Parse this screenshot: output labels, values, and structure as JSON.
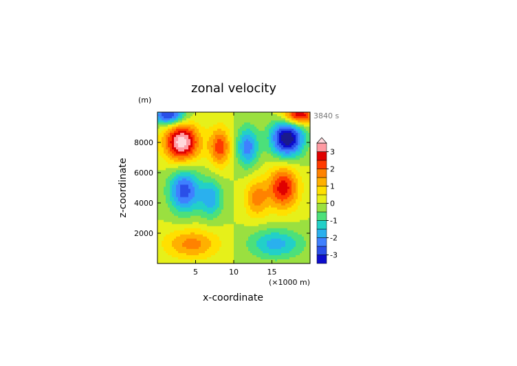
{
  "chart_data": {
    "type": "heatmap",
    "title": "zonal velocity",
    "time_label": "3840 s",
    "xlabel": "x-coordinate",
    "ylabel": "z-coordinate",
    "x_unit": "(×1000 m)",
    "y_unit": "(m)",
    "xlim": [
      0,
      20
    ],
    "ylim": [
      0,
      10000
    ],
    "x_ticks": [
      5,
      10,
      15
    ],
    "y_ticks": [
      2000,
      4000,
      6000,
      8000
    ],
    "colorbar": {
      "ticks": [
        -3,
        -2,
        -1,
        0,
        1,
        2,
        3
      ],
      "levels": [
        -3.5,
        -3,
        -2.5,
        -2,
        -1.5,
        -1,
        -0.5,
        0,
        0.5,
        1,
        1.5,
        2,
        2.5,
        3,
        3.5
      ],
      "colors": [
        "#1a1a8c",
        "#0d0dcc",
        "#2a4fe8",
        "#3f80ff",
        "#2ab0ee",
        "#22d0c8",
        "#4ce07a",
        "#9ae040",
        "#e6f01a",
        "#ffe000",
        "#ffb000",
        "#ff8200",
        "#ff3a00",
        "#e00000",
        "#ff9aa2",
        "#ffd8dc"
      ],
      "extend": "both"
    },
    "features": [
      {
        "x": 3.2,
        "z": 8000,
        "value": 3.8,
        "sx": 1.6,
        "sz": 900
      },
      {
        "x": 17.0,
        "z": 8250,
        "value": -4.0,
        "sx": 1.5,
        "sz": 850
      },
      {
        "x": 8.2,
        "z": 7700,
        "value": 2.3,
        "sx": 1.0,
        "sz": 900
      },
      {
        "x": 11.8,
        "z": 7700,
        "value": -2.3,
        "sx": 1.0,
        "sz": 900
      },
      {
        "x": 3.5,
        "z": 4800,
        "value": -2.8,
        "sx": 1.4,
        "sz": 1000
      },
      {
        "x": 16.5,
        "z": 5000,
        "value": 2.8,
        "sx": 1.4,
        "sz": 1000
      },
      {
        "x": 7.0,
        "z": 4300,
        "value": -1.8,
        "sx": 1.1,
        "sz": 900
      },
      {
        "x": 13.0,
        "z": 4300,
        "value": 1.7,
        "sx": 1.1,
        "sz": 900
      },
      {
        "x": 4.5,
        "z": 1300,
        "value": 1.7,
        "sx": 2.5,
        "sz": 700
      },
      {
        "x": 15.5,
        "z": 1300,
        "value": -1.7,
        "sx": 2.5,
        "sz": 700
      },
      {
        "x": 1.5,
        "z": 9800,
        "value": -3.2,
        "sx": 1.5,
        "sz": 450
      },
      {
        "x": 18.5,
        "z": 9800,
        "value": 3.2,
        "sx": 1.5,
        "sz": 450
      }
    ]
  }
}
